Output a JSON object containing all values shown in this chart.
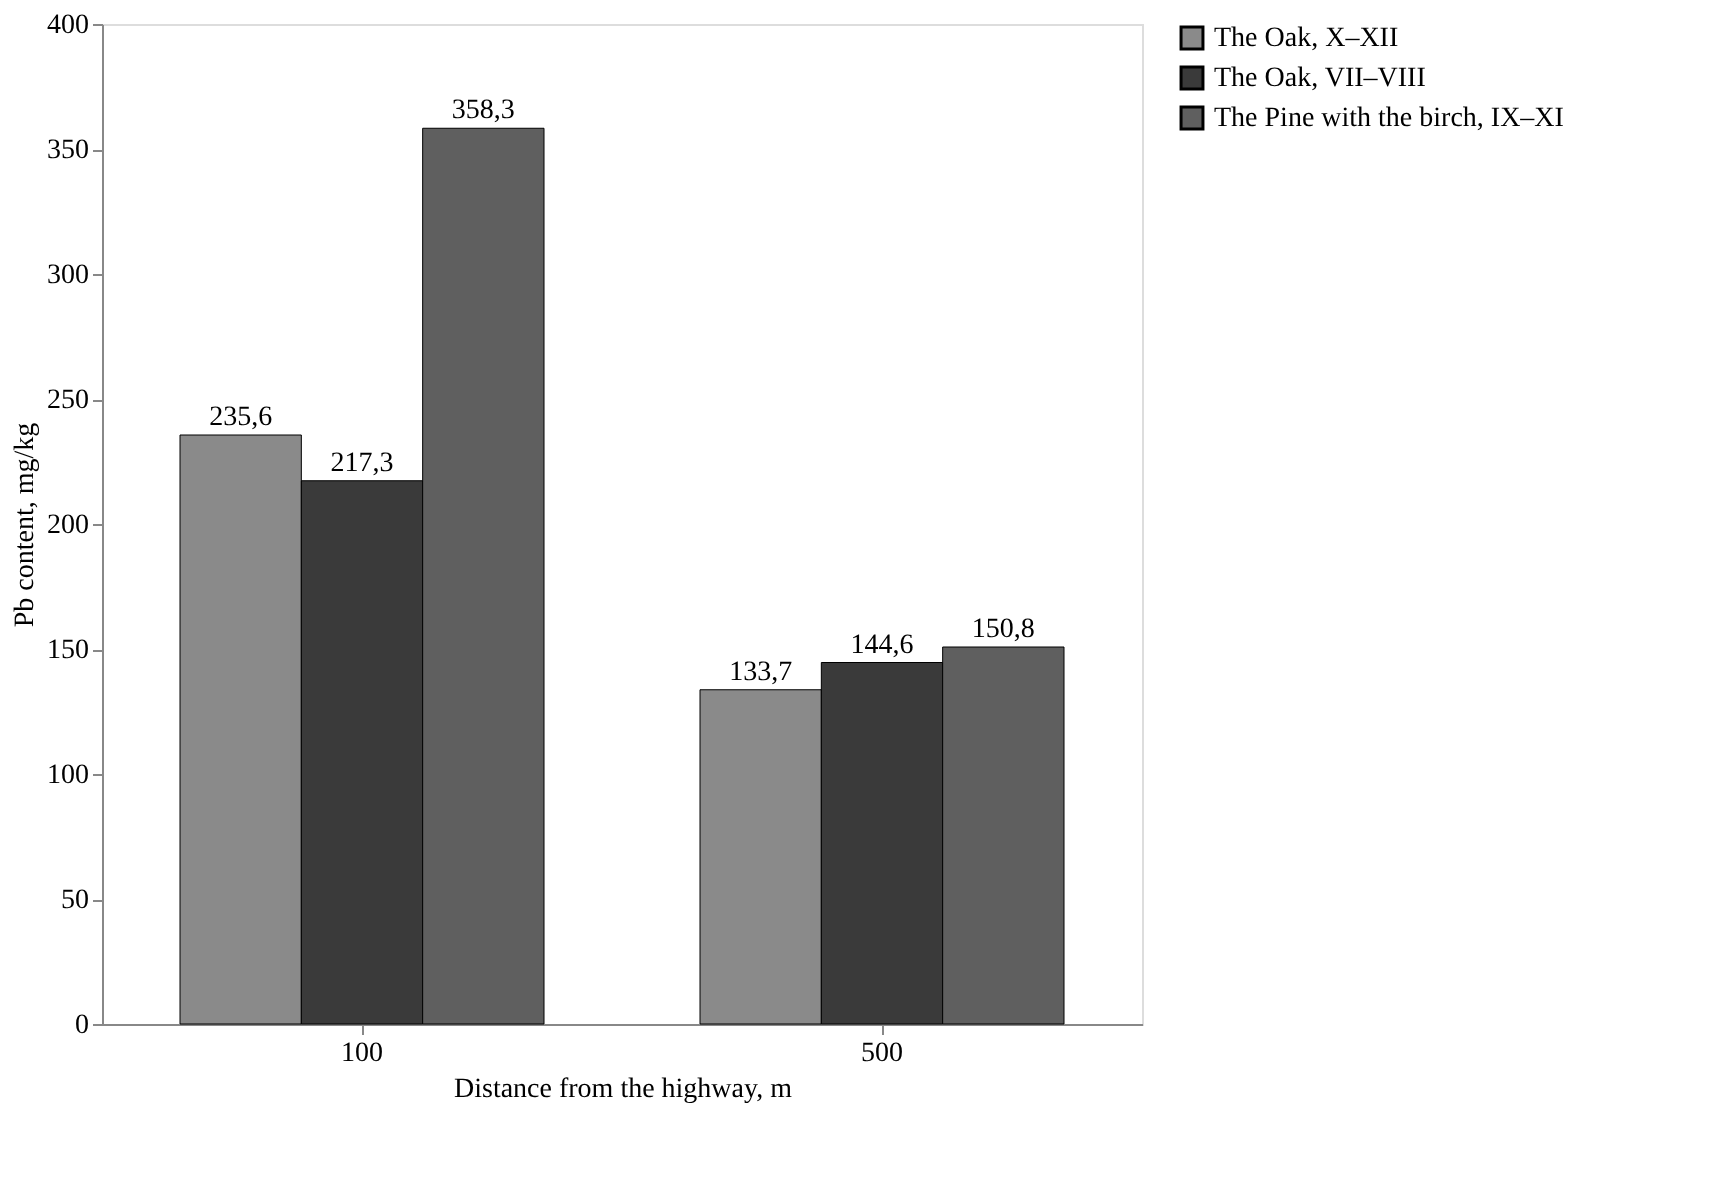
{
  "chart_data": {
    "type": "bar",
    "xlabel": "Distance from the highway, m",
    "ylabel": "Pb content, mg/kg",
    "categories": [
      "100",
      "500"
    ],
    "series": [
      {
        "name": "The Oak, X–XII",
        "color": "#8a8a8a",
        "values": [
          235.6,
          133.7
        ],
        "value_labels": [
          "235,6",
          "133,7"
        ]
      },
      {
        "name": "The Oak, VII–VIII",
        "color": "#3a3a3a",
        "values": [
          217.3,
          144.6
        ],
        "value_labels": [
          "217,3",
          "144,6"
        ]
      },
      {
        "name": "The Pine with the birch, IX–XI",
        "color": "#5f5f5f",
        "values": [
          358.3,
          150.8
        ],
        "value_labels": [
          "358,3",
          "150,8"
        ]
      }
    ],
    "ylim": [
      0,
      400
    ],
    "yticks": [
      0,
      50,
      100,
      150,
      200,
      250,
      300,
      350,
      400
    ],
    "grid": false,
    "legend": "right"
  }
}
